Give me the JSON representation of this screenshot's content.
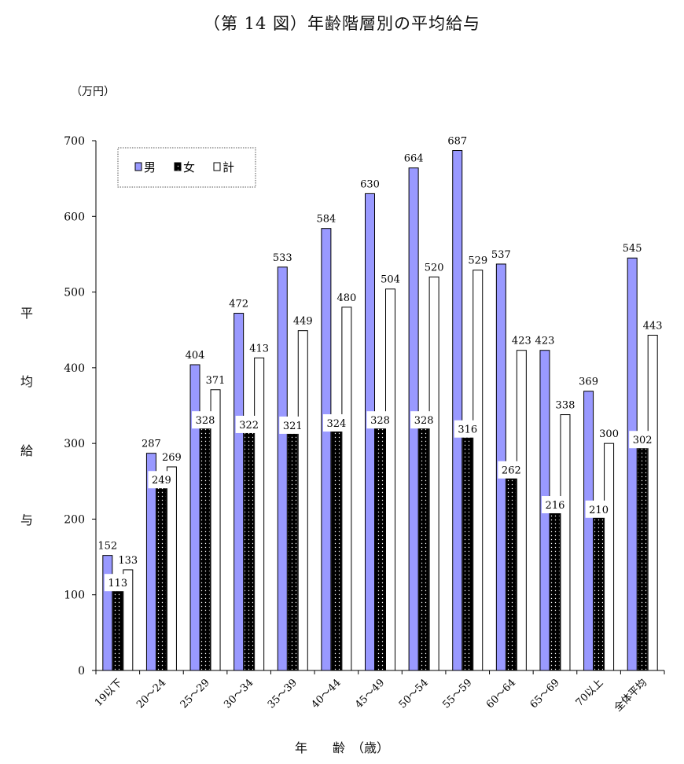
{
  "page": {
    "title": "（第 14 図）年齢階層別の平均給与",
    "unit": "（万円）",
    "ylabel_chars": [
      "平",
      "均",
      "給",
      "与"
    ],
    "xlabel": "年　　齢　（歳）"
  },
  "legend": [
    "男",
    "女",
    "計"
  ],
  "colors": {
    "male": "#9999ff",
    "female": "#000000",
    "total": "#ffffff",
    "stroke": "#000000"
  },
  "chart_data": {
    "type": "bar",
    "title": "（第 14 図）年齢階層別の平均給与",
    "xlabel": "年　　齢　（歳）",
    "ylabel": "平均給与",
    "unit": "（万円）",
    "ylim": [
      0,
      700
    ],
    "yticks": [
      0,
      100,
      200,
      300,
      400,
      500,
      600,
      700
    ],
    "legend_position": "top-left",
    "grid": false,
    "categories": [
      "19以下",
      "20～24",
      "25～29",
      "30～34",
      "35～39",
      "40～44",
      "45～49",
      "50～54",
      "55～59",
      "60～64",
      "65～69",
      "70以上",
      "全体平均"
    ],
    "series": [
      {
        "name": "男",
        "values": [
          152,
          287,
          404,
          472,
          533,
          584,
          630,
          664,
          687,
          537,
          423,
          369,
          545
        ]
      },
      {
        "name": "女",
        "values": [
          113,
          249,
          328,
          322,
          321,
          324,
          328,
          328,
          316,
          262,
          216,
          210,
          302
        ]
      },
      {
        "name": "計",
        "values": [
          133,
          269,
          371,
          413,
          449,
          480,
          504,
          520,
          529,
          423,
          338,
          300,
          443
        ]
      }
    ]
  }
}
